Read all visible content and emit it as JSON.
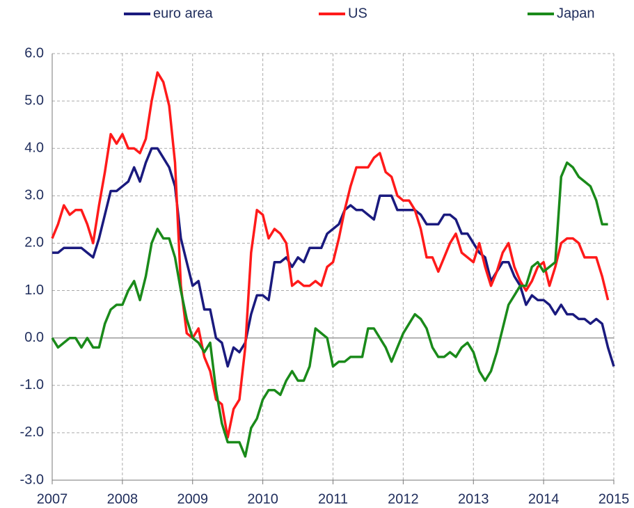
{
  "chart_data": {
    "type": "line",
    "categories": [
      "2007",
      null,
      null,
      null,
      null,
      null,
      null,
      null,
      null,
      null,
      null,
      null,
      "2008",
      null,
      null,
      null,
      null,
      null,
      null,
      null,
      null,
      null,
      null,
      null,
      "2009",
      null,
      null,
      null,
      null,
      null,
      null,
      null,
      null,
      null,
      null,
      null,
      "2010",
      null,
      null,
      null,
      null,
      null,
      null,
      null,
      null,
      null,
      null,
      null,
      "2011",
      null,
      null,
      null,
      null,
      null,
      null,
      null,
      null,
      null,
      null,
      null,
      "2012",
      null,
      null,
      null,
      null,
      null,
      null,
      null,
      null,
      null,
      null,
      null,
      "2013",
      null,
      null,
      null,
      null,
      null,
      null,
      null,
      null,
      null,
      null,
      null,
      "2014",
      null,
      null,
      null,
      null,
      null,
      null,
      null,
      null,
      null,
      null,
      null,
      "2015"
    ],
    "series": [
      {
        "name": "euro area",
        "color": "#1a1a7e",
        "values": [
          1.8,
          1.8,
          1.9,
          1.9,
          1.9,
          1.9,
          1.8,
          1.7,
          2.1,
          2.6,
          3.1,
          3.1,
          3.2,
          3.3,
          3.6,
          3.3,
          3.7,
          4.0,
          4.0,
          3.8,
          3.6,
          3.2,
          2.1,
          1.6,
          1.1,
          1.2,
          0.6,
          0.6,
          0.0,
          -0.1,
          -0.6,
          -0.2,
          -0.3,
          -0.1,
          0.5,
          0.9,
          0.9,
          0.8,
          1.6,
          1.6,
          1.7,
          1.5,
          1.7,
          1.6,
          1.9,
          1.9,
          1.9,
          2.2,
          2.3,
          2.4,
          2.7,
          2.8,
          2.7,
          2.7,
          2.6,
          2.5,
          3.0,
          3.0,
          3.0,
          2.7,
          2.7,
          2.7,
          2.7,
          2.6,
          2.4,
          2.4,
          2.4,
          2.6,
          2.6,
          2.5,
          2.2,
          2.2,
          2.0,
          1.8,
          1.7,
          1.2,
          1.4,
          1.6,
          1.6,
          1.3,
          1.1,
          0.7,
          0.9,
          0.8,
          0.8,
          0.7,
          0.5,
          0.7,
          0.5,
          0.5,
          0.4,
          0.4,
          0.3,
          0.4,
          0.3,
          -0.2,
          -0.6
        ]
      },
      {
        "name": "US",
        "color": "#ff1a1a",
        "values": [
          2.1,
          2.4,
          2.8,
          2.6,
          2.7,
          2.7,
          2.4,
          2.0,
          2.8,
          3.5,
          4.3,
          4.1,
          4.3,
          4.0,
          4.0,
          3.9,
          4.2,
          5.0,
          5.6,
          5.4,
          4.9,
          3.7,
          1.1,
          0.1,
          0.0,
          0.2,
          -0.4,
          -0.7,
          -1.3,
          -1.4,
          -2.1,
          -1.5,
          -1.3,
          -0.2,
          1.8,
          2.7,
          2.6,
          2.1,
          2.3,
          2.2,
          2.0,
          1.1,
          1.2,
          1.1,
          1.1,
          1.2,
          1.1,
          1.5,
          1.6,
          2.1,
          2.7,
          3.2,
          3.6,
          3.6,
          3.6,
          3.8,
          3.9,
          3.5,
          3.4,
          3.0,
          2.9,
          2.9,
          2.7,
          2.3,
          1.7,
          1.7,
          1.4,
          1.7,
          2.0,
          2.2,
          1.8,
          1.7,
          1.6,
          2.0,
          1.5,
          1.1,
          1.4,
          1.8,
          2.0,
          1.5,
          1.2,
          1.0,
          1.2,
          1.5,
          1.6,
          1.1,
          1.5,
          2.0,
          2.1,
          2.1,
          2.0,
          1.7,
          1.7,
          1.7,
          1.3,
          0.8,
          null
        ]
      },
      {
        "name": "Japan",
        "color": "#1a8a1a",
        "values": [
          0.0,
          -0.2,
          -0.1,
          0.0,
          0.0,
          -0.2,
          0.0,
          -0.2,
          -0.2,
          0.3,
          0.6,
          0.7,
          0.7,
          1.0,
          1.2,
          0.8,
          1.3,
          2.0,
          2.3,
          2.1,
          2.1,
          1.7,
          1.0,
          0.4,
          0.0,
          -0.1,
          -0.3,
          -0.1,
          -1.1,
          -1.8,
          -2.2,
          -2.2,
          -2.2,
          -2.5,
          -1.9,
          -1.7,
          -1.3,
          -1.1,
          -1.1,
          -1.2,
          -0.9,
          -0.7,
          -0.9,
          -0.9,
          -0.6,
          0.2,
          0.1,
          0.0,
          -0.6,
          -0.5,
          -0.5,
          -0.4,
          -0.4,
          -0.4,
          0.2,
          0.2,
          0.0,
          -0.2,
          -0.5,
          -0.2,
          0.1,
          0.3,
          0.5,
          0.4,
          0.2,
          -0.2,
          -0.4,
          -0.4,
          -0.3,
          -0.4,
          -0.2,
          -0.1,
          -0.3,
          -0.7,
          -0.9,
          -0.7,
          -0.3,
          0.2,
          0.7,
          0.9,
          1.1,
          1.1,
          1.5,
          1.6,
          1.4,
          1.5,
          1.6,
          3.4,
          3.7,
          3.6,
          3.4,
          3.3,
          3.2,
          2.9,
          2.4,
          2.4,
          null
        ]
      }
    ],
    "ylim": [
      -3,
      6
    ],
    "yticks": [
      {
        "value": -3,
        "label": "-3.0"
      },
      {
        "value": -2,
        "label": "-2.0"
      },
      {
        "value": -1,
        "label": "-1.0"
      },
      {
        "value": 0,
        "label": "0.0"
      },
      {
        "value": 1,
        "label": "1.0"
      },
      {
        "value": 2,
        "label": "2.0"
      },
      {
        "value": 3,
        "label": "3.0"
      },
      {
        "value": 4,
        "label": "4.0"
      },
      {
        "value": 5,
        "label": "5.0"
      },
      {
        "value": 6,
        "label": "6.0"
      }
    ],
    "grid": true,
    "legend": "top"
  }
}
